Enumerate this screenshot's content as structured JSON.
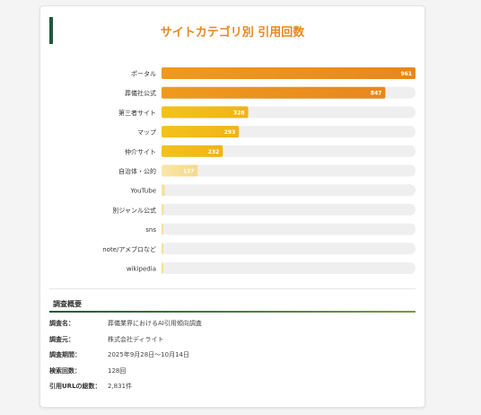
{
  "title": "サイトカテゴリ別 引用回数",
  "colors": {
    "accent": "#1e5a3c",
    "title": "#e8871e",
    "bar_high": "#e8871e",
    "bar_mid": "#f0b418",
    "bar_low": "#f7d98a",
    "track": "#efefef"
  },
  "chart_data": {
    "type": "bar",
    "orientation": "horizontal",
    "title": "サイトカテゴリ別 引用回数",
    "categories": [
      "ポータル",
      "葬儀社公式",
      "第三者サイト",
      "マップ",
      "仲介サイト",
      "自治体・公的",
      "YouTube",
      "別ジャンル公式",
      "sns",
      "note/アメブロなど",
      "wikipedia"
    ],
    "values": [
      961,
      847,
      328,
      293,
      232,
      137,
      12,
      8,
      6,
      5,
      3
    ],
    "value_labels": [
      "961",
      "847",
      "328",
      "293",
      "232",
      "137",
      "",
      "",
      "",
      "",
      ""
    ],
    "xlim": [
      0,
      961
    ]
  },
  "summary": {
    "heading": "調査概要",
    "rows": [
      {
        "key": "調査名：",
        "value": "葬儀業界におけるAI引用傾向調査"
      },
      {
        "key": "調査元：",
        "value": "株式会社ディライト"
      },
      {
        "key": "調査期間：",
        "value": "2025年9月28日〜10月14日"
      },
      {
        "key": "検索回数：",
        "value": "128回"
      },
      {
        "key": "引用URLの総数：",
        "value": "2,831件"
      }
    ]
  }
}
